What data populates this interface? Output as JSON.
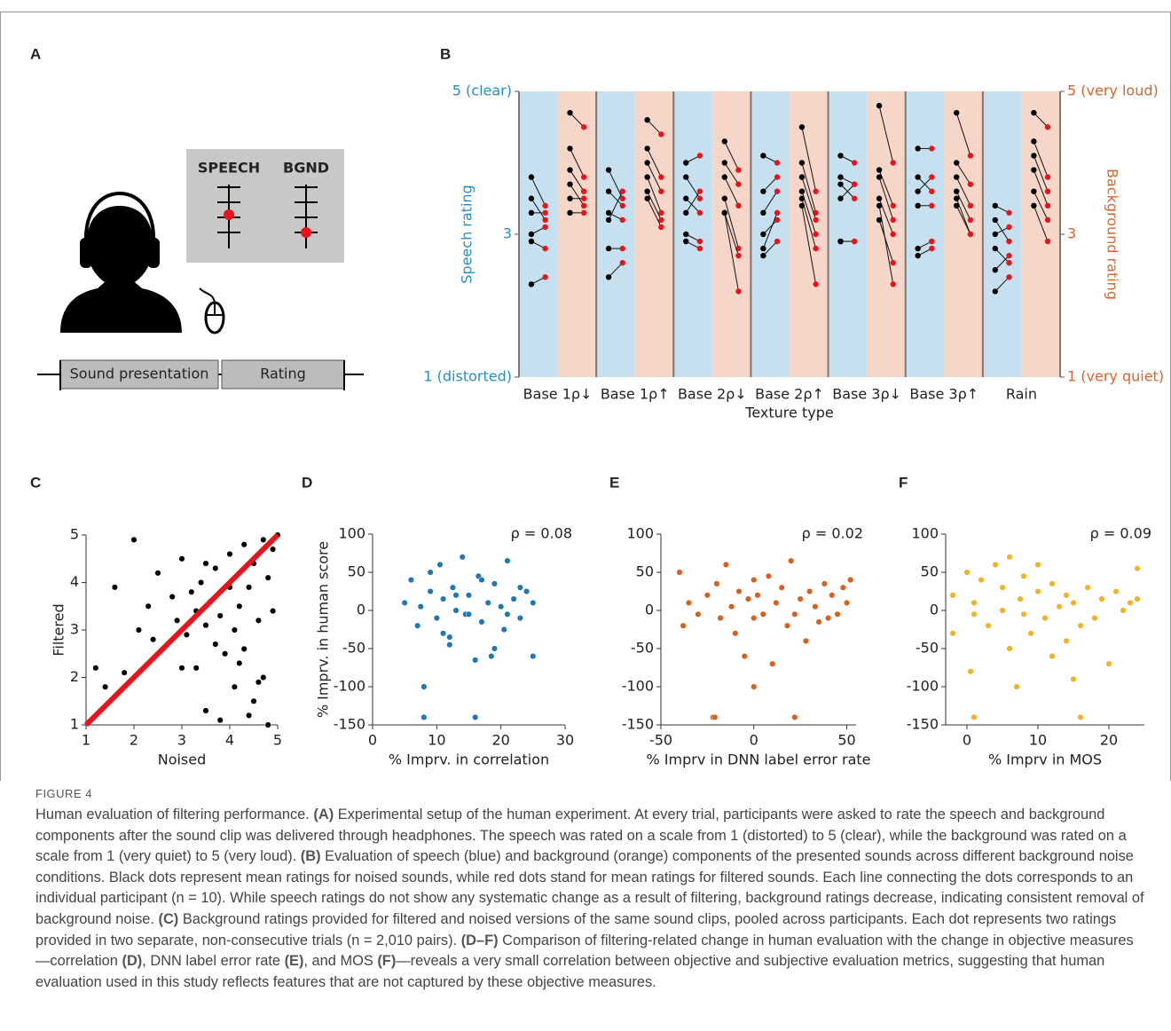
{
  "figure": {
    "caption_title": "FIGURE 4",
    "caption": [
      {
        "text": "Human evaluation of filtering performance. ",
        "bold": false
      },
      {
        "text": "(A)",
        "bold": true
      },
      {
        "text": " Experimental setup of the human experiment. At every trial, participants were asked to rate the speech and background components after the sound clip was delivered through headphones. The speech was rated on a scale from 1 (distorted) to 5 (clear), while the background was rated on a scale from 1 (very quiet) to 5 (very loud). ",
        "bold": false
      },
      {
        "text": "(B)",
        "bold": true
      },
      {
        "text": " Evaluation of speech (blue) and background (orange) components of the presented sounds across different background noise conditions. Black dots represent mean ratings for noised sounds, while red dots stand for mean ratings for filtered sounds. Each line connecting the dots corresponds to an individual participant (n = 10). While speech ratings do not show any systematic change as a result of filtering, background ratings decrease, indicating consistent removal of background noise. ",
        "bold": false
      },
      {
        "text": "(C)",
        "bold": true
      },
      {
        "text": " Background ratings provided for filtered and noised versions of the same sound clips, pooled across participants. Each dot represents two ratings provided in two separate, non-consecutive trials (n = 2,010 pairs). ",
        "bold": false
      },
      {
        "text": "(D–F)",
        "bold": true
      },
      {
        "text": " Comparison of filtering-related change in human evaluation with the change in objective measures—correlation ",
        "bold": false
      },
      {
        "text": "(D)",
        "bold": true
      },
      {
        "text": ", DNN label error rate ",
        "bold": false
      },
      {
        "text": "(E)",
        "bold": true
      },
      {
        "text": ", and MOS ",
        "bold": false
      },
      {
        "text": "(F)",
        "bold": true
      },
      {
        "text": "—reveals a very small correlation between objective and subjective evaluation metrics, suggesting that human evaluation used in this study reflects features that are not captured by these objective measures.",
        "bold": false
      }
    ]
  },
  "panel_a": {
    "panel": "A",
    "speech_label": "SPEECH",
    "bgnd_label": "BGND",
    "sound_presentation": "Sound presentation",
    "rating": "Rating"
  },
  "chart_data": [
    {
      "type": "paired",
      "panel": "B",
      "xlabel": "Texture type",
      "ylabel": "Speech rating",
      "y2label": "Background rating",
      "ylabel_color": "#2a8cc6",
      "y2label_color": "#d9642c",
      "noised_color": "#000000",
      "filtered_color": "#e8141c",
      "speech_band_color": "#c6e0f0",
      "background_band_color": "#f6d6c9",
      "ylim": [
        1,
        5
      ],
      "yticks": [
        {
          "value": 5,
          "label": "5 (clear)"
        },
        3,
        {
          "value": 1,
          "label": "1 (distorted)"
        }
      ],
      "y2lim": [
        1,
        5
      ],
      "y2ticks": [
        {
          "value": 5,
          "label": "5 (very loud)"
        },
        3,
        {
          "value": 1,
          "label": "1 (very quiet)"
        }
      ],
      "categories": [
        "Base 1ρ↓",
        "Base 1ρ↑",
        "Base 2ρ↓",
        "Base 2ρ↑",
        "Base 3ρ↓",
        "Base 3ρ↑",
        "Rain"
      ],
      "groups": [
        {
          "speech_noised": [
            3.8,
            3.5,
            3.3,
            3.0,
            2.9,
            2.3
          ],
          "speech_filtered": [
            3.4,
            3.2,
            3.3,
            3.1,
            2.8,
            2.4
          ],
          "background_noised": [
            4.7,
            4.2,
            3.9,
            3.7,
            3.5,
            3.3
          ],
          "background_filtered": [
            4.5,
            3.8,
            3.6,
            3.4,
            3.5,
            3.3
          ]
        },
        {
          "speech_noised": [
            3.9,
            3.6,
            3.3,
            3.2,
            2.8,
            2.4
          ],
          "speech_filtered": [
            3.5,
            3.4,
            3.2,
            3.6,
            2.8,
            2.6
          ],
          "background_noised": [
            4.6,
            4.2,
            4.0,
            3.8,
            3.6,
            3.5
          ],
          "background_filtered": [
            4.4,
            3.8,
            3.6,
            3.3,
            3.2,
            3.1
          ]
        },
        {
          "speech_noised": [
            4.0,
            3.8,
            3.5,
            3.3,
            3.0,
            2.9
          ],
          "speech_filtered": [
            4.1,
            3.5,
            3.3,
            3.6,
            2.9,
            2.8
          ],
          "background_noised": [
            4.3,
            4.0,
            3.8,
            3.5,
            3.3,
            3.3
          ],
          "background_filtered": [
            3.9,
            3.7,
            3.4,
            2.8,
            2.7,
            2.2
          ]
        },
        {
          "speech_noised": [
            4.1,
            3.6,
            3.3,
            3.0,
            2.8,
            2.7
          ],
          "speech_filtered": [
            4.0,
            3.8,
            3.6,
            3.2,
            3.3,
            2.9
          ],
          "background_noised": [
            4.5,
            4.0,
            3.8,
            3.6,
            3.5,
            3.4
          ],
          "background_filtered": [
            3.6,
            3.3,
            3.2,
            3.0,
            2.8,
            2.3
          ]
        },
        {
          "speech_noised": [
            4.1,
            3.8,
            3.7,
            3.5,
            2.9,
            2.9
          ],
          "speech_filtered": [
            4.0,
            3.7,
            3.5,
            3.7,
            2.9,
            2.9
          ],
          "background_noised": [
            4.8,
            3.9,
            3.8,
            3.5,
            3.2,
            3.4
          ],
          "background_filtered": [
            4.0,
            3.4,
            3.2,
            3.0,
            2.6,
            2.3
          ]
        },
        {
          "speech_noised": [
            4.2,
            3.8,
            3.6,
            3.4,
            2.8,
            2.7
          ],
          "speech_filtered": [
            4.2,
            3.6,
            3.8,
            3.4,
            2.9,
            2.8
          ],
          "background_noised": [
            4.7,
            4.0,
            3.8,
            3.6,
            3.5,
            3.4
          ],
          "background_filtered": [
            4.1,
            3.7,
            3.4,
            3.2,
            3.0,
            3.0
          ]
        },
        {
          "speech_noised": [
            3.4,
            3.2,
            3.0,
            2.8,
            2.5,
            2.2
          ],
          "speech_filtered": [
            3.3,
            2.9,
            3.1,
            2.6,
            2.7,
            2.4
          ],
          "background_noised": [
            4.7,
            4.3,
            4.1,
            3.9,
            3.6,
            3.4
          ],
          "background_filtered": [
            4.5,
            3.8,
            3.6,
            3.4,
            3.2,
            2.9
          ]
        }
      ]
    },
    {
      "type": "scatter",
      "panel": "C",
      "xlabel": "Noised",
      "ylabel": "Filtered",
      "color": "#000000",
      "diagonal": true,
      "diagonal_color": "#e8141c",
      "xlim": [
        1,
        5
      ],
      "ylim": [
        1,
        5
      ],
      "xticks": [
        1,
        2,
        3,
        4,
        5
      ],
      "yticks": [
        1,
        2,
        3,
        4,
        5
      ],
      "x": [
        1.2,
        1.4,
        1.6,
        1.8,
        2.0,
        2.1,
        2.3,
        2.5,
        2.6,
        2.8,
        2.9,
        3.0,
        3.1,
        3.2,
        3.3,
        3.3,
        3.4,
        3.5,
        3.5,
        3.6,
        3.7,
        3.7,
        3.8,
        3.9,
        3.9,
        4.0,
        4.1,
        4.1,
        4.2,
        4.3,
        4.3,
        4.4,
        4.5,
        4.5,
        4.6,
        4.7,
        4.7,
        4.8,
        4.9,
        4.9,
        5.0,
        3.5,
        3.8,
        4.2,
        4.6,
        2.4,
        3.0,
        4.0,
        4.4,
        4.8
      ],
      "values": [
        2.2,
        1.8,
        3.9,
        2.1,
        4.9,
        3.0,
        3.5,
        4.2,
        2.6,
        3.7,
        3.2,
        4.5,
        2.9,
        3.8,
        3.4,
        2.2,
        4.0,
        3.1,
        1.3,
        3.6,
        2.7,
        4.3,
        3.3,
        2.5,
        3.9,
        4.6,
        3.0,
        1.8,
        3.5,
        4.8,
        2.6,
        3.9,
        1.5,
        4.4,
        3.2,
        4.9,
        2.0,
        4.1,
        4.7,
        3.4,
        5.0,
        4.4,
        1.1,
        2.3,
        1.9,
        2.8,
        2.2,
        3.9,
        1.2,
        1.0
      ]
    },
    {
      "type": "scatter",
      "panel": "D",
      "xlabel": "% Imprv. in correlation",
      "ylabel": "% Imprv. in human score",
      "annotation": "ρ = 0.08",
      "color": "#1f77b4",
      "xlim": [
        0,
        30
      ],
      "ylim": [
        -150,
        100
      ],
      "xticks": [
        0,
        10,
        20,
        30
      ],
      "yticks": [
        100,
        50,
        0,
        -50,
        -100,
        -150
      ],
      "x": [
        5,
        6,
        7,
        7.5,
        8,
        9,
        10,
        10.5,
        11,
        12,
        12.5,
        13,
        14,
        14.5,
        15,
        16,
        16.5,
        17,
        18,
        18.5,
        19,
        20,
        20.5,
        21,
        22,
        23,
        24,
        25,
        8,
        15,
        9,
        11,
        13,
        17,
        19,
        21,
        23,
        16,
        12,
        25
      ],
      "values": [
        10,
        40,
        -20,
        5,
        -140,
        25,
        -10,
        60,
        15,
        -35,
        30,
        0,
        70,
        -5,
        20,
        -140,
        45,
        -15,
        10,
        -60,
        35,
        5,
        -25,
        65,
        15,
        -10,
        25,
        10,
        -100,
        -5,
        50,
        -30,
        20,
        40,
        -50,
        -5,
        30,
        -65,
        -45,
        -60
      ]
    },
    {
      "type": "scatter",
      "panel": "E",
      "xlabel": "% Imprv in DNN label error rate",
      "annotation": "ρ = 0.02",
      "color": "#d95f1e",
      "xlim": [
        -50,
        55
      ],
      "ylim": [
        -150,
        100
      ],
      "xticks": [
        -50,
        0,
        50
      ],
      "yticks": [
        100,
        50,
        0,
        -50,
        -100,
        -150
      ],
      "x": [
        -40,
        -38,
        -35,
        -30,
        -25,
        -22,
        -20,
        -18,
        -15,
        -12,
        -10,
        -8,
        -5,
        -3,
        0,
        0,
        0,
        2,
        5,
        8,
        10,
        12,
        15,
        18,
        20,
        22,
        25,
        28,
        30,
        33,
        35,
        38,
        40,
        42,
        45,
        48,
        50,
        52,
        -21,
        22
      ],
      "values": [
        50,
        -20,
        10,
        -5,
        20,
        -140,
        35,
        -10,
        60,
        5,
        -30,
        25,
        -60,
        15,
        40,
        -10,
        -100,
        20,
        -5,
        45,
        -70,
        10,
        30,
        -20,
        65,
        -5,
        15,
        -40,
        25,
        5,
        -15,
        35,
        -10,
        20,
        -5,
        30,
        10,
        40,
        -140,
        -140
      ]
    },
    {
      "type": "scatter",
      "panel": "F",
      "xlabel": "% Imprv in MOS",
      "annotation": "ρ = 0.09",
      "color": "#f0b323",
      "xlim": [
        -3,
        25
      ],
      "ylim": [
        -150,
        100
      ],
      "xticks": [
        0,
        10,
        20
      ],
      "yticks": [
        100,
        50,
        0,
        -50,
        -100,
        -150
      ],
      "x": [
        -2,
        -2,
        0,
        0.5,
        1,
        1,
        2,
        3,
        4,
        5,
        5,
        6,
        6,
        7,
        7.5,
        8,
        8,
        9,
        10,
        10,
        11,
        12,
        12,
        13,
        14,
        14,
        15,
        15,
        16,
        17,
        18,
        19,
        20,
        21,
        22,
        23,
        24,
        24,
        1,
        16
      ],
      "values": [
        20,
        -30,
        50,
        -80,
        10,
        -140,
        40,
        -20,
        60,
        0,
        30,
        -50,
        70,
        -100,
        15,
        -5,
        45,
        -30,
        25,
        60,
        -10,
        35,
        -60,
        5,
        20,
        -40,
        10,
        -90,
        -20,
        30,
        -10,
        15,
        -70,
        25,
        0,
        10,
        55,
        15,
        -5,
        -140
      ]
    }
  ]
}
